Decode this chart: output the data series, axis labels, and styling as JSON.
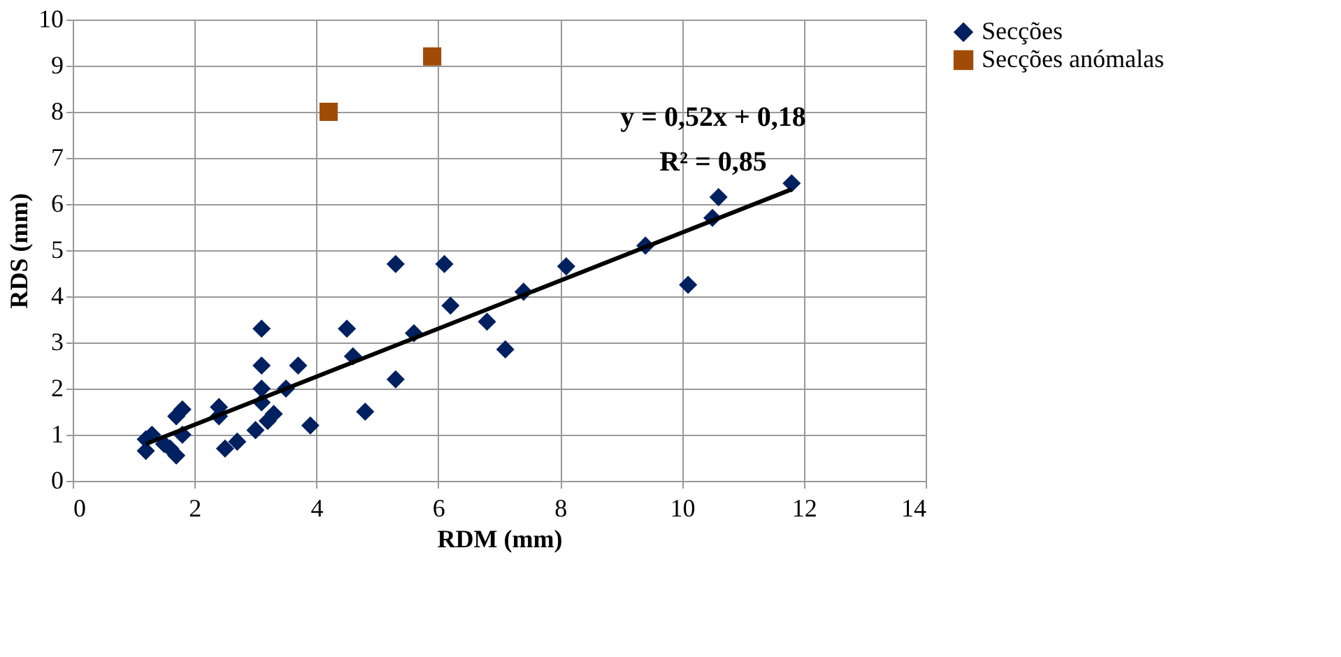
{
  "chart_data": {
    "type": "scatter",
    "xlabel": "RDM (mm)",
    "ylabel": "RDS (mm)",
    "xlim": [
      0,
      14
    ],
    "ylim": [
      0,
      10
    ],
    "xticks": [
      0,
      2,
      4,
      6,
      8,
      10,
      12,
      14
    ],
    "yticks": [
      0,
      1,
      2,
      3,
      4,
      5,
      6,
      7,
      8,
      9,
      10
    ],
    "grid": true,
    "legend": "right",
    "series": [
      {
        "name": "Secções",
        "color": "#002060",
        "marker": "diamond",
        "x": [
          1.2,
          1.2,
          1.3,
          1.5,
          1.6,
          1.7,
          1.7,
          1.8,
          1.8,
          2.4,
          2.4,
          2.5,
          2.7,
          3.0,
          3.1,
          3.1,
          3.1,
          3.1,
          3.2,
          3.3,
          3.5,
          3.7,
          3.9,
          4.5,
          4.6,
          4.8,
          5.3,
          5.3,
          5.6,
          6.1,
          6.2,
          6.8,
          7.1,
          7.4,
          8.1,
          9.4,
          10.1,
          10.5,
          10.6,
          11.8
        ],
        "values": [
          0.65,
          0.9,
          1.0,
          0.8,
          0.7,
          0.55,
          1.4,
          1.55,
          1.0,
          1.6,
          1.4,
          0.7,
          0.85,
          1.1,
          3.3,
          2.5,
          2.0,
          1.7,
          1.3,
          1.45,
          2.0,
          2.5,
          1.2,
          3.3,
          2.7,
          1.5,
          4.7,
          2.2,
          3.2,
          4.7,
          3.8,
          3.45,
          2.85,
          4.1,
          4.65,
          5.1,
          4.25,
          5.7,
          6.15,
          6.45
        ]
      },
      {
        "name": "Secções anómalas",
        "color": "#a04c06",
        "marker": "square",
        "x": [
          4.2,
          5.9
        ],
        "values": [
          8.0,
          9.2
        ]
      },
      {
        "type": "line",
        "color": "#000000",
        "line_style": "solid",
        "x": [
          1.2,
          11.8
        ],
        "values": [
          0.8,
          6.32
        ]
      }
    ],
    "annotations": [
      "y = 0,52x + 0,18",
      "R² = 0,85"
    ]
  }
}
